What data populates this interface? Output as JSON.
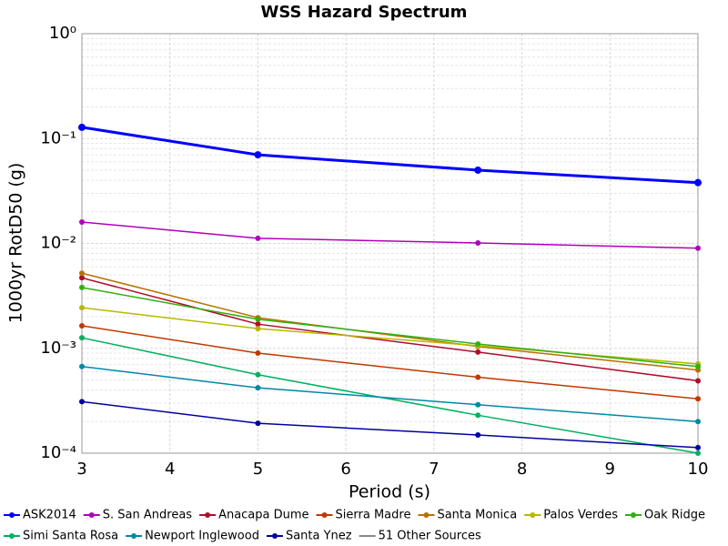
{
  "chart_data": {
    "type": "line",
    "title": "WSS Hazard Spectrum",
    "x_label": "Period (s)",
    "y_label": "1000yr RotD50 (g)",
    "x": [
      3,
      5,
      7.5,
      10
    ],
    "xlim": [
      3,
      10
    ],
    "xticks": [
      3,
      4,
      5,
      6,
      7,
      8,
      9,
      10
    ],
    "ylim": [
      0.0001,
      1
    ],
    "log_y": true,
    "grid": true,
    "yticks": [
      {
        "value": 1,
        "label": "10⁰"
      },
      {
        "value": 0.1,
        "label": "10⁻¹"
      },
      {
        "value": 0.01,
        "label": "10⁻²"
      },
      {
        "value": 0.001,
        "label": "10⁻³"
      },
      {
        "value": 0.0001,
        "label": "10⁻⁴"
      }
    ],
    "series": [
      {
        "name": "ASK2014",
        "color": "#0000ff",
        "values": [
          0.128,
          0.07,
          0.05,
          0.038
        ]
      },
      {
        "name": "S. San Andreas",
        "color": "#b000b8",
        "values": [
          0.016,
          0.0112,
          0.0101,
          0.009
        ]
      },
      {
        "name": "Anacapa Dume",
        "color": "#b00c2c",
        "values": [
          0.0047,
          0.0017,
          0.00092,
          0.00049
        ]
      },
      {
        "name": "Sierra Madre",
        "color": "#c03800",
        "values": [
          0.00164,
          0.0009,
          0.00053,
          0.00033
        ]
      },
      {
        "name": "Santa Monica",
        "color": "#b87000",
        "values": [
          0.0052,
          0.00196,
          0.00104,
          0.00062
        ]
      },
      {
        "name": "Palos Verdes",
        "color": "#b8b800",
        "values": [
          0.00244,
          0.00154,
          0.00106,
          0.00071
        ]
      },
      {
        "name": "Oak Ridge",
        "color": "#30b010",
        "values": [
          0.0038,
          0.00189,
          0.0011,
          0.00067
        ]
      },
      {
        "name": "Simi Santa Rosa",
        "color": "#00b060",
        "values": [
          0.00126,
          0.00056,
          0.00023,
          0.0001
        ]
      },
      {
        "name": "Newport Inglewood",
        "color": "#0088a8",
        "values": [
          0.00067,
          0.00042,
          0.00029,
          0.0002
        ]
      },
      {
        "name": "Santa Ynez",
        "color": "#0000a0",
        "values": [
          0.00031,
          0.000193,
          0.000149,
          0.000113
        ]
      },
      {
        "name": "51 Other Sources",
        "color": "#888888",
        "values": [
          null,
          null,
          null,
          null
        ]
      }
    ]
  }
}
